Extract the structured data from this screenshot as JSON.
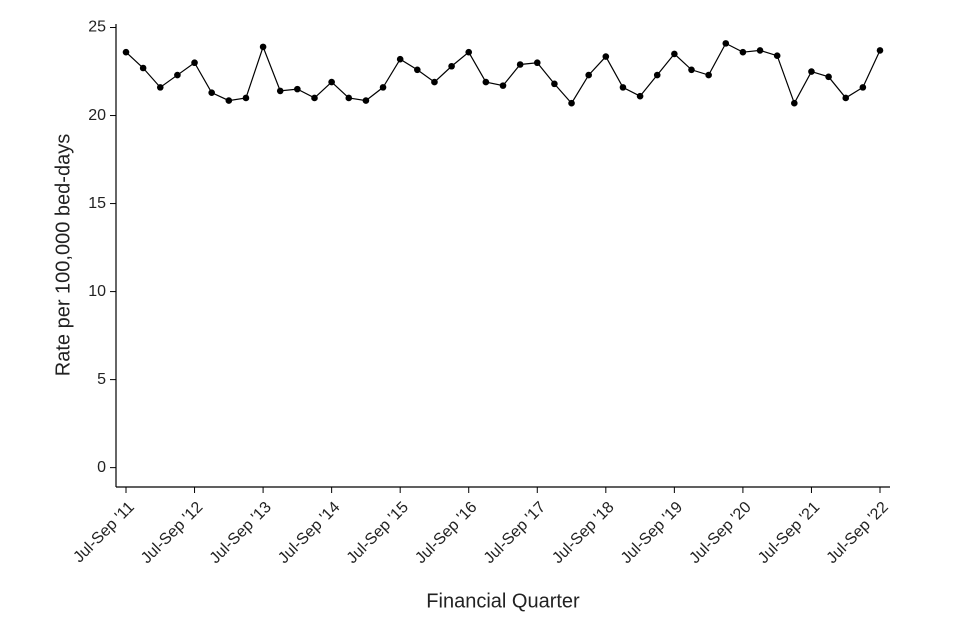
{
  "chart_data": {
    "type": "line",
    "x_label": "Financial Quarter",
    "y_label": "Rate per 100,000 bed-days",
    "categories": [
      "Jul-Sep '11",
      null,
      null,
      null,
      "Jul-Sep '12",
      null,
      null,
      null,
      "Jul-Sep '13",
      null,
      null,
      null,
      "Jul-Sep '14",
      null,
      null,
      null,
      "Jul-Sep '15",
      null,
      null,
      null,
      "Jul-Sep '16",
      null,
      null,
      null,
      "Jul-Sep '17",
      null,
      null,
      null,
      "Jul-Sep '18",
      null,
      null,
      null,
      "Jul-Sep '19",
      null,
      null,
      null,
      "Jul-Sep '20",
      null,
      null,
      null,
      "Jul-Sep '21",
      null,
      null,
      null,
      "Jul-Sep '22"
    ],
    "values": [
      23.6,
      22.7,
      21.6,
      22.3,
      23.0,
      21.3,
      20.85,
      21.0,
      23.9,
      21.4,
      21.5,
      21.0,
      21.9,
      21.0,
      20.85,
      21.6,
      23.2,
      22.6,
      21.9,
      22.8,
      23.6,
      21.9,
      21.7,
      22.9,
      23.0,
      21.8,
      20.7,
      22.3,
      23.35,
      21.6,
      21.1,
      22.3,
      23.5,
      22.6,
      22.3,
      24.1,
      23.6,
      23.7,
      23.4,
      20.7,
      22.5,
      22.2,
      21.0,
      21.6,
      23.7
    ],
    "color": "#000000",
    "ylim": [
      -1.1,
      25.2
    ],
    "yticks": [
      0,
      5,
      10,
      15,
      20,
      25
    ],
    "grid": false
  }
}
